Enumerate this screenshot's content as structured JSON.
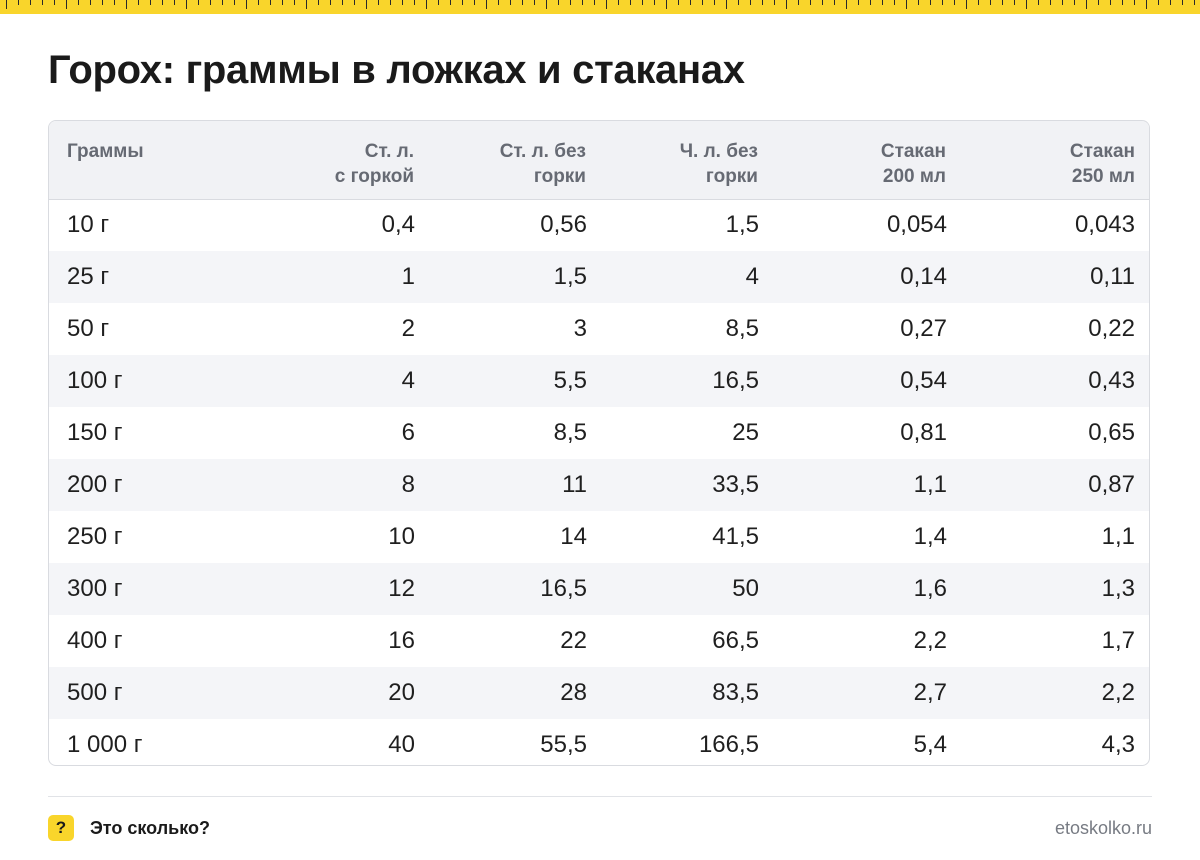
{
  "colors": {
    "accent": "#f9d52b",
    "header_bg": "#f1f2f5",
    "stripe_bg": "#f4f5f8",
    "muted_text": "#666a73"
  },
  "title": "Горох: граммы в ложках и стаканах",
  "table": {
    "headers": [
      {
        "line1": "Граммы",
        "line2": ""
      },
      {
        "line1": "Ст. л.",
        "line2": "с горкой"
      },
      {
        "line1": "Ст. л. без",
        "line2": "горки"
      },
      {
        "line1": "Ч. л. без",
        "line2": "горки"
      },
      {
        "line1": "Стакан",
        "line2": "200 мл"
      },
      {
        "line1": "Стакан",
        "line2": "250 мл"
      }
    ],
    "rows": [
      [
        "10 г",
        "0,4",
        "0,56",
        "1,5",
        "0,054",
        "0,043"
      ],
      [
        "25 г",
        "1",
        "1,5",
        "4",
        "0,14",
        "0,11"
      ],
      [
        "50 г",
        "2",
        "3",
        "8,5",
        "0,27",
        "0,22"
      ],
      [
        "100 г",
        "4",
        "5,5",
        "16,5",
        "0,54",
        "0,43"
      ],
      [
        "150 г",
        "6",
        "8,5",
        "25",
        "0,81",
        "0,65"
      ],
      [
        "200 г",
        "8",
        "11",
        "33,5",
        "1,1",
        "0,87"
      ],
      [
        "250 г",
        "10",
        "14",
        "41,5",
        "1,4",
        "1,1"
      ],
      [
        "300 г",
        "12",
        "16,5",
        "50",
        "1,6",
        "1,3"
      ],
      [
        "400 г",
        "16",
        "22",
        "66,5",
        "2,2",
        "1,7"
      ],
      [
        "500 г",
        "20",
        "28",
        "83,5",
        "2,7",
        "2,2"
      ],
      [
        "1 000 г",
        "40",
        "55,5",
        "166,5",
        "5,4",
        "4,3"
      ]
    ]
  },
  "footer": {
    "badge": "?",
    "brand": "Это сколько?",
    "site": "etoskolko.ru"
  }
}
